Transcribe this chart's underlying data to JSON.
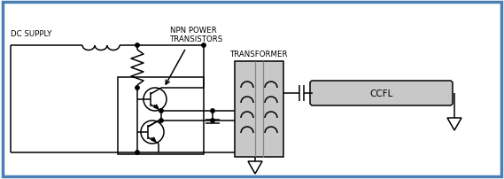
{
  "bg_color": "#ffffff",
  "border_color": "#4a7fb5",
  "border_lw": 2.5,
  "line_color": "#000000",
  "gray_fill": "#c8c8c8",
  "gray_line": "#888888",
  "label_dc": "DC SUPPLY",
  "label_npn": "NPN POWER\nTRANSISTORS",
  "label_transformer": "TRANSFORMER",
  "label_ccfl": "CCFL",
  "figsize": [
    5.69,
    2.03
  ],
  "dpi": 100
}
